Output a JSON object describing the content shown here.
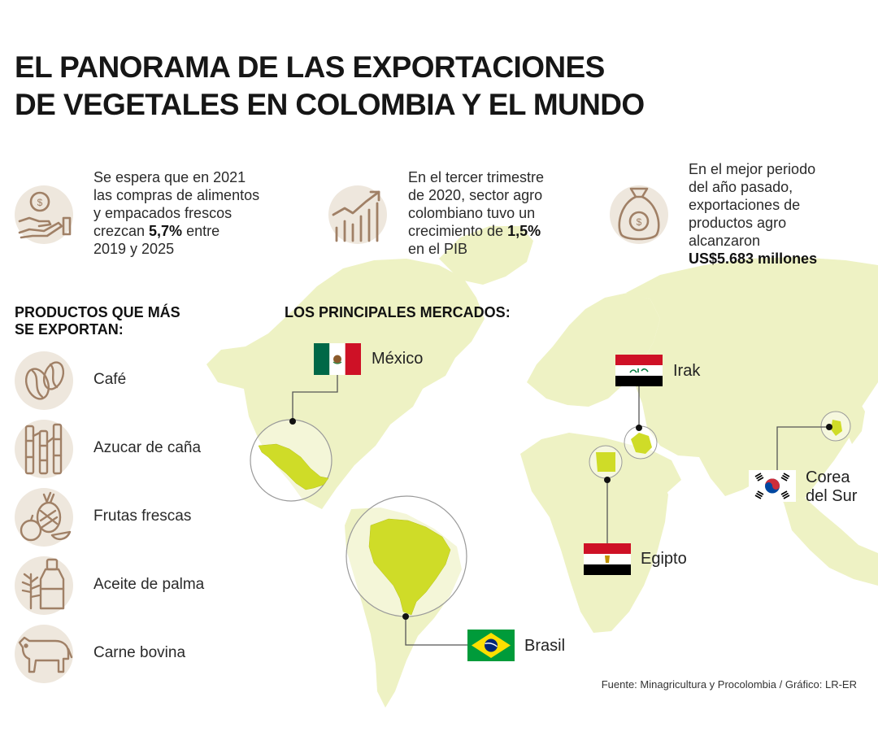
{
  "title": {
    "line1": "EL PANORAMA DE LAS EXPORTACIONES",
    "line2": "DE VEGETALES EN COLOMBIA Y EL MUNDO"
  },
  "stats": [
    {
      "icon": "hand-coin-icon",
      "lines": [
        "Se espera que en 2021",
        "las compras de alimentos",
        "y empacados frescos"
      ],
      "pre": "crezcan ",
      "bold": "5,7%",
      "post": " entre",
      "last": "2019 y 2025"
    },
    {
      "icon": "growth-chart-icon",
      "lines": [
        "En el tercer trimestre",
        "de 2020, sector agro",
        "colombiano tuvo un"
      ],
      "pre": "crecimiento de ",
      "bold": "1,5%",
      "post": "",
      "last": "en el PIB"
    },
    {
      "icon": "money-bag-icon",
      "lines": [
        "En el mejor periodo",
        "del año pasado,",
        "exportaciones de",
        "productos agro",
        "alcanzaron"
      ],
      "bold": "US$5.683 millones"
    }
  ],
  "products": {
    "title_line1": "PRODUCTOS QUE MÁS",
    "title_line2": "SE EXPORTAN:",
    "items": [
      {
        "label": "Café",
        "icon": "coffee-bean-icon"
      },
      {
        "label": "Azucar de caña",
        "icon": "sugar-cane-icon"
      },
      {
        "label": "Frutas frescas",
        "icon": "fruits-icon"
      },
      {
        "label": "Aceite de palma",
        "icon": "palm-oil-bottle-icon"
      },
      {
        "label": "Carne bovina",
        "icon": "cow-icon"
      }
    ]
  },
  "markets": {
    "title": "LOS PRINCIPALES MERCADOS:",
    "countries": [
      {
        "name": "México",
        "flag": "mexico-flag-icon"
      },
      {
        "name": "Irak",
        "flag": "iraq-flag-icon"
      },
      {
        "name_line1": "Corea",
        "name_line2": "del Sur",
        "flag": "south-korea-flag-icon"
      },
      {
        "name": "Egipto",
        "flag": "egypt-flag-icon"
      },
      {
        "name": "Brasil",
        "flag": "brazil-flag-icon"
      }
    ]
  },
  "colors": {
    "map_land": "#eef2c4",
    "country_highlight": "#cfdc28",
    "icon_circle": "#eee7dd",
    "icon_stroke": "#a08066",
    "connector": "#555555"
  },
  "source": "Fuente: Minagricultura y Procolombia / Gráfico: LR-ER"
}
